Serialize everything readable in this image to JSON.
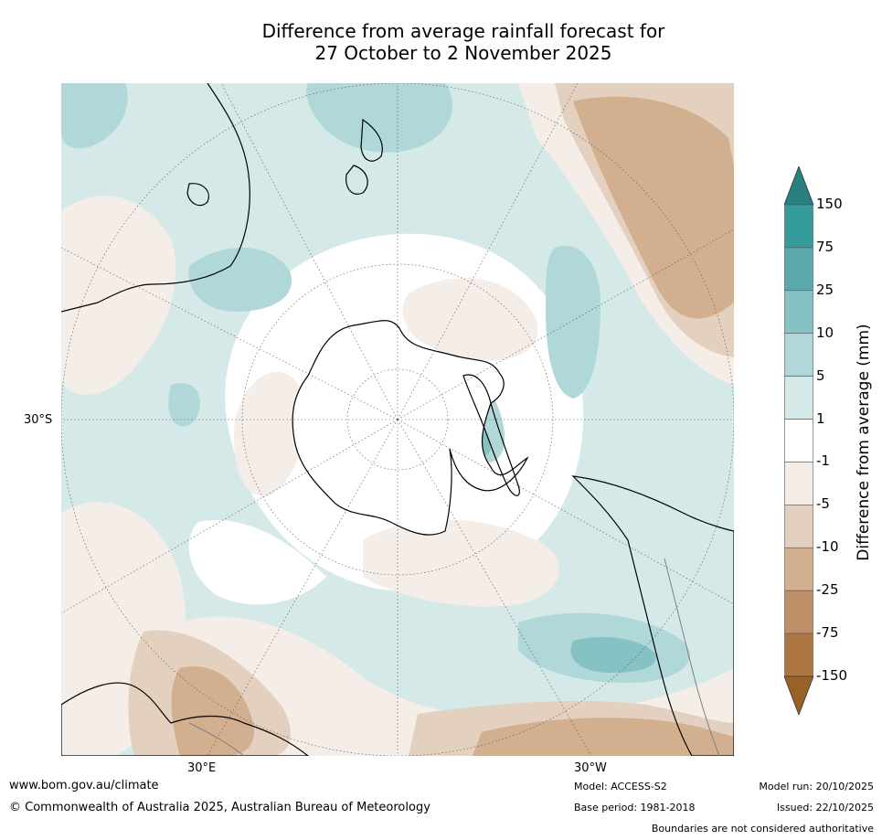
{
  "title": {
    "line1": "Difference from average rainfall forecast for",
    "line2": "27 October to 2 November 2025"
  },
  "map": {
    "projection": "south-polar-stereographic",
    "longitude_labels": [
      "30°E",
      "30°W"
    ],
    "latitude_labels": [
      "30°S"
    ],
    "coastline_color": "#000000",
    "border_color": "#808080",
    "grid_style": "dotted"
  },
  "legend": {
    "title": "Difference from average (mm)",
    "ticks": [
      "150",
      "75",
      "25",
      "10",
      "5",
      "1",
      "-1",
      "-5",
      "-10",
      "-25",
      "-75",
      "-150"
    ],
    "colors": {
      "above_150": "#2a7f80",
      "75_to_150": "#349a9a",
      "25_to_75": "#5ba9aa",
      "10_to_25": "#86c2c3",
      "5_to_10": "#b0d8d8",
      "1_to_5": "#d6e9e9",
      "-1_to_1": "#ffffff",
      "-5_to_-1": "#f4ede8",
      "-10_to_-5": "#e3d0bf",
      "-25_to_-10": "#d2b08f",
      "-75_to_-25": "#bf9068",
      "-150_to_-75": "#ae7643",
      "below_-150": "#9a6127"
    }
  },
  "footer": {
    "url": "www.bom.gov.au/climate",
    "copyright": "© Commonwealth of Australia 2025, Australian Bureau of Meteorology",
    "model": "Model: ACCESS-S2",
    "base_period": "Base period: 1981-2018",
    "model_run": "Model run: 20/10/2025",
    "issued": "Issued: 22/10/2025",
    "disclaimer": "Boundaries are not considered authoritative"
  }
}
